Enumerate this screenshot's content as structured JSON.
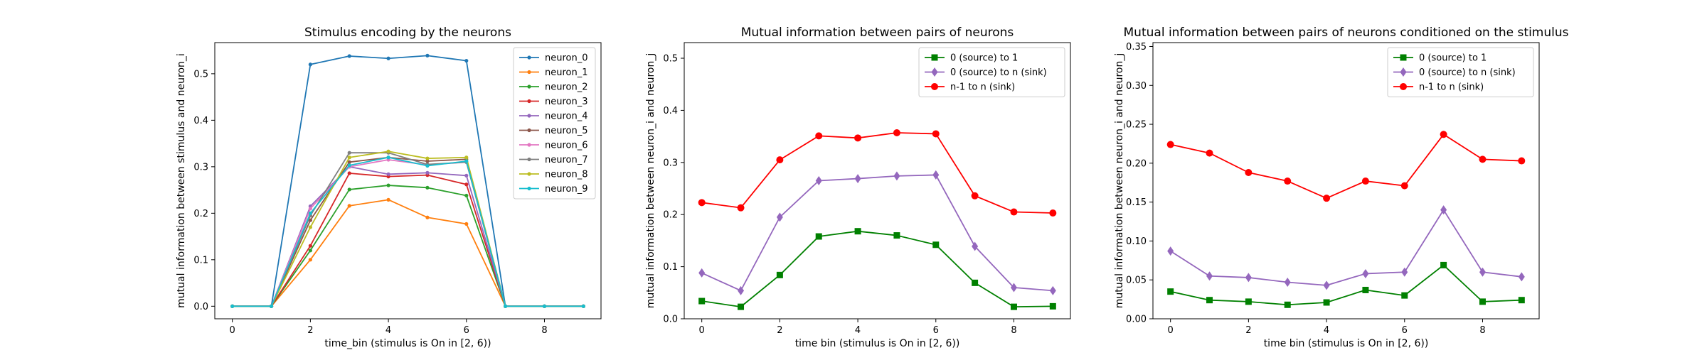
{
  "chart_data": [
    {
      "type": "line",
      "title": "Stimulus encoding by the neurons",
      "xlabel": "time_bin (stimulus is On in [2, 6))",
      "ylabel": "mutual information between stimulus and neuron_i",
      "xlim": [
        -0.45,
        9.45
      ],
      "ylim": [
        -0.027,
        0.567
      ],
      "xticks": [
        0,
        2,
        4,
        6,
        8
      ],
      "yticks": [
        0.0,
        0.1,
        0.2,
        0.3,
        0.4,
        0.5
      ],
      "ytick_decimals": 1,
      "grid": false,
      "legend_position": "top-right",
      "x": [
        0,
        1,
        2,
        3,
        4,
        5,
        6,
        7,
        8,
        9
      ],
      "series": [
        {
          "name": "neuron_0",
          "color": "#1f77b4",
          "marker": "dot",
          "values": [
            0,
            0,
            0.52,
            0.538,
            0.533,
            0.539,
            0.528,
            0,
            0,
            0
          ]
        },
        {
          "name": "neuron_1",
          "color": "#ff7f0e",
          "marker": "dot",
          "values": [
            0,
            0,
            0.1,
            0.216,
            0.229,
            0.191,
            0.177,
            0,
            0,
            0
          ]
        },
        {
          "name": "neuron_2",
          "color": "#2ca02c",
          "marker": "dot",
          "values": [
            0,
            0,
            0.12,
            0.251,
            0.26,
            0.255,
            0.238,
            0,
            0,
            0
          ]
        },
        {
          "name": "neuron_3",
          "color": "#d62728",
          "marker": "dot",
          "values": [
            0,
            0,
            0.13,
            0.286,
            0.279,
            0.282,
            0.262,
            0,
            0,
            0
          ]
        },
        {
          "name": "neuron_4",
          "color": "#9467bd",
          "marker": "dot",
          "values": [
            0,
            0,
            0.215,
            0.3,
            0.284,
            0.287,
            0.281,
            0,
            0,
            0
          ]
        },
        {
          "name": "neuron_5",
          "color": "#8c564b",
          "marker": "dot",
          "values": [
            0,
            0,
            0.185,
            0.31,
            0.32,
            0.312,
            0.316,
            0,
            0,
            0
          ]
        },
        {
          "name": "neuron_6",
          "color": "#e377c2",
          "marker": "dot",
          "values": [
            0,
            0,
            0.21,
            0.3,
            0.315,
            0.304,
            0.31,
            0,
            0,
            0
          ]
        },
        {
          "name": "neuron_7",
          "color": "#7f7f7f",
          "marker": "dot",
          "values": [
            0,
            0,
            0.195,
            0.33,
            0.33,
            0.305,
            0.31,
            0,
            0,
            0
          ]
        },
        {
          "name": "neuron_8",
          "color": "#bcbd22",
          "marker": "dot",
          "values": [
            0,
            0,
            0.17,
            0.32,
            0.333,
            0.318,
            0.32,
            0,
            0,
            0
          ]
        },
        {
          "name": "neuron_9",
          "color": "#17becf",
          "marker": "dot",
          "values": [
            0,
            0,
            0.2,
            0.303,
            0.32,
            0.302,
            0.312,
            0,
            0,
            0
          ]
        }
      ]
    },
    {
      "type": "line",
      "title": "Mutual information between pairs of neurons",
      "xlabel": "time bin (stimulus is On in [2, 6))",
      "ylabel": "mutual information between neuron_i and neuron_j",
      "xlim": [
        -0.45,
        9.45
      ],
      "ylim": [
        0.0,
        0.53
      ],
      "xticks": [
        0,
        2,
        4,
        6,
        8
      ],
      "yticks": [
        0.0,
        0.1,
        0.2,
        0.3,
        0.4,
        0.5
      ],
      "ytick_decimals": 1,
      "grid": false,
      "legend_position": "top-right",
      "x": [
        0,
        1,
        2,
        3,
        4,
        5,
        6,
        7,
        8,
        9
      ],
      "series": [
        {
          "name": "0 (source) to 1",
          "color": "#008000",
          "marker": "square",
          "values": [
            0.034,
            0.023,
            0.084,
            0.158,
            0.168,
            0.16,
            0.142,
            0.069,
            0.023,
            0.024
          ]
        },
        {
          "name": "0 (source) to n (sink)",
          "color": "#9467bd",
          "marker": "diamond",
          "values": [
            0.088,
            0.054,
            0.195,
            0.265,
            0.269,
            0.274,
            0.276,
            0.139,
            0.06,
            0.054
          ]
        },
        {
          "name": "n-1 to n (sink)",
          "color": "#ff0000",
          "marker": "circle",
          "values": [
            0.223,
            0.213,
            0.305,
            0.351,
            0.347,
            0.357,
            0.355,
            0.236,
            0.205,
            0.203
          ]
        }
      ]
    },
    {
      "type": "line",
      "title": "Mutual information between pairs of neurons conditioned on the stimulus",
      "xlabel": "time bin (stimulus is On in [2, 6))",
      "ylabel": "mutual information between neuron_i and neuron_j",
      "xlim": [
        -0.45,
        9.45
      ],
      "ylim": [
        0.0,
        0.355
      ],
      "xticks": [
        0,
        2,
        4,
        6,
        8
      ],
      "yticks": [
        0.0,
        0.05,
        0.1,
        0.15,
        0.2,
        0.25,
        0.3,
        0.35
      ],
      "ytick_decimals": 2,
      "grid": false,
      "legend_position": "top-right",
      "x": [
        0,
        1,
        2,
        3,
        4,
        5,
        6,
        7,
        8,
        9
      ],
      "series": [
        {
          "name": "0 (source) to 1",
          "color": "#008000",
          "marker": "square",
          "values": [
            0.035,
            0.024,
            0.022,
            0.018,
            0.021,
            0.037,
            0.03,
            0.069,
            0.022,
            0.024
          ]
        },
        {
          "name": "0 (source) to n (sink)",
          "color": "#9467bd",
          "marker": "diamond",
          "values": [
            0.087,
            0.055,
            0.053,
            0.047,
            0.043,
            0.058,
            0.06,
            0.14,
            0.06,
            0.054
          ]
        },
        {
          "name": "n-1 to n (sink)",
          "color": "#ff0000",
          "marker": "circle",
          "values": [
            0.224,
            0.213,
            0.188,
            0.177,
            0.155,
            0.177,
            0.171,
            0.237,
            0.205,
            0.203
          ]
        }
      ]
    }
  ]
}
